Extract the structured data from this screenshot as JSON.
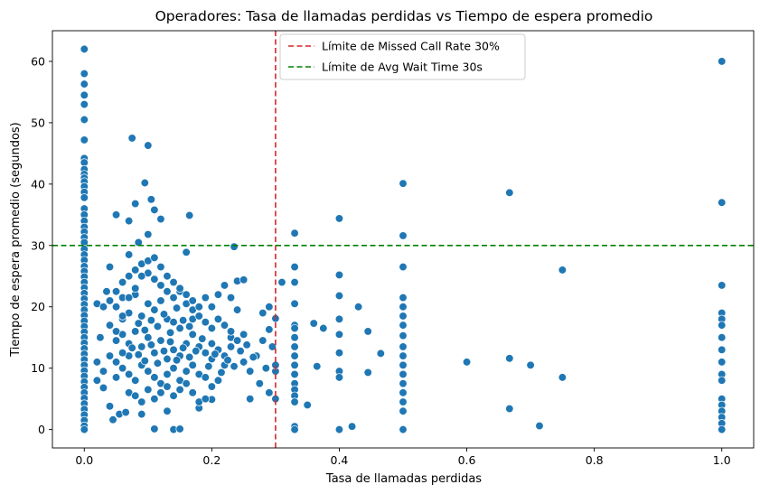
{
  "chart_data": {
    "type": "scatter",
    "title": "Operadores: Tasa de llamadas perdidas vs Tiempo de espera promedio",
    "xlabel": "Tasa de llamadas perdidas",
    "ylabel": "Tiempo de espera promedio (segundos)",
    "xlim": [
      -0.05,
      1.05
    ],
    "ylim": [
      -3,
      65
    ],
    "xticks": [
      0.0,
      0.2,
      0.4,
      0.6,
      0.8,
      1.0
    ],
    "xtick_labels": [
      "0.0",
      "0.2",
      "0.4",
      "0.6",
      "0.8",
      "1.0"
    ],
    "yticks": [
      0,
      10,
      20,
      30,
      40,
      50,
      60
    ],
    "ytick_labels": [
      "0",
      "10",
      "20",
      "30",
      "40",
      "50",
      "60"
    ],
    "grid": false,
    "legend_position": "top-center",
    "point_color": "#1f77b4",
    "reference_lines": [
      {
        "orientation": "vertical",
        "value": 0.3,
        "color": "#d62728",
        "style": "dashed",
        "label": "Límite de Missed Call Rate 30%"
      },
      {
        "orientation": "horizontal",
        "value": 30,
        "color": "#008000",
        "style": "dashed",
        "label": "Límite de Avg Wait Time 30s"
      }
    ],
    "points": [
      [
        0.0,
        62.0
      ],
      [
        0.0,
        58.0
      ],
      [
        0.0,
        56.3
      ],
      [
        0.0,
        54.5
      ],
      [
        0.0,
        53.0
      ],
      [
        0.0,
        50.5
      ],
      [
        0.0,
        47.2
      ],
      [
        0.0,
        44.2
      ],
      [
        0.0,
        43.5
      ],
      [
        0.0,
        42.4
      ],
      [
        0.0,
        41.6
      ],
      [
        0.0,
        41.0
      ],
      [
        0.0,
        40.4
      ],
      [
        0.0,
        39.6
      ],
      [
        0.0,
        38.7
      ],
      [
        0.0,
        37.8
      ],
      [
        0.0,
        36.0
      ],
      [
        0.0,
        35.0
      ],
      [
        0.0,
        34.0
      ],
      [
        0.0,
        33.0
      ],
      [
        0.0,
        32.2
      ],
      [
        0.0,
        31.3
      ],
      [
        0.0,
        30.5
      ],
      [
        0.0,
        29.4
      ],
      [
        0.0,
        28.5
      ],
      [
        0.0,
        27.6
      ],
      [
        0.0,
        26.6
      ],
      [
        0.0,
        25.8
      ],
      [
        0.0,
        24.9
      ],
      [
        0.0,
        24.0
      ],
      [
        0.0,
        23.1
      ],
      [
        0.0,
        22.2
      ],
      [
        0.0,
        21.3
      ],
      [
        0.0,
        20.4
      ],
      [
        0.0,
        19.5
      ],
      [
        0.0,
        18.6
      ],
      [
        0.0,
        17.7
      ],
      [
        0.0,
        16.8
      ],
      [
        0.0,
        15.9
      ],
      [
        0.0,
        15.0
      ],
      [
        0.0,
        14.1
      ],
      [
        0.0,
        13.2
      ],
      [
        0.0,
        12.3
      ],
      [
        0.0,
        11.4
      ],
      [
        0.0,
        10.5
      ],
      [
        0.0,
        9.6
      ],
      [
        0.0,
        8.7
      ],
      [
        0.0,
        7.8
      ],
      [
        0.0,
        6.9
      ],
      [
        0.0,
        6.0
      ],
      [
        0.0,
        5.1
      ],
      [
        0.0,
        4.2
      ],
      [
        0.0,
        3.3
      ],
      [
        0.0,
        2.4
      ],
      [
        0.0,
        1.5
      ],
      [
        0.0,
        0.6
      ],
      [
        0.0,
        0.0
      ],
      [
        0.02,
        20.5
      ],
      [
        0.025,
        15.0
      ],
      [
        0.02,
        11.0
      ],
      [
        0.03,
        6.8
      ],
      [
        0.035,
        22.5
      ],
      [
        0.04,
        26.5
      ],
      [
        0.04,
        3.8
      ],
      [
        0.045,
        1.6
      ],
      [
        0.05,
        35.0
      ],
      [
        0.05,
        8.5
      ],
      [
        0.055,
        2.5
      ],
      [
        0.06,
        18.0
      ],
      [
        0.065,
        2.8
      ],
      [
        0.07,
        34.0
      ],
      [
        0.07,
        28.5
      ],
      [
        0.07,
        12.0
      ],
      [
        0.075,
        47.5
      ],
      [
        0.08,
        36.8
      ],
      [
        0.085,
        30.5
      ],
      [
        0.09,
        2.5
      ],
      [
        0.095,
        40.2
      ],
      [
        0.1,
        46.3
      ],
      [
        0.1,
        31.8
      ],
      [
        0.105,
        37.5
      ],
      [
        0.11,
        35.8
      ],
      [
        0.11,
        0.1
      ],
      [
        0.12,
        34.3
      ],
      [
        0.13,
        3.0
      ],
      [
        0.14,
        0.0
      ],
      [
        0.15,
        0.1
      ],
      [
        0.16,
        28.9
      ],
      [
        0.165,
        34.9
      ],
      [
        0.17,
        18.0
      ],
      [
        0.18,
        3.5
      ],
      [
        0.2,
        4.9
      ],
      [
        0.21,
        8.0
      ],
      [
        0.22,
        10.5
      ],
      [
        0.23,
        15.0
      ],
      [
        0.235,
        29.8
      ],
      [
        0.24,
        24.2
      ],
      [
        0.25,
        24.4
      ],
      [
        0.25,
        11.0
      ],
      [
        0.26,
        5.0
      ],
      [
        0.26,
        9.5
      ],
      [
        0.27,
        12.0
      ],
      [
        0.275,
        7.5
      ],
      [
        0.28,
        14.5
      ],
      [
        0.28,
        19.0
      ],
      [
        0.285,
        10.0
      ],
      [
        0.29,
        16.3
      ],
      [
        0.29,
        6.0
      ],
      [
        0.29,
        20.0
      ],
      [
        0.295,
        13.5
      ],
      [
        0.3,
        18.1
      ],
      [
        0.3,
        9.5
      ],
      [
        0.3,
        5.0
      ],
      [
        0.3,
        10.5
      ],
      [
        0.31,
        24.0
      ],
      [
        0.05,
        20.0
      ],
      [
        0.06,
        21.5
      ],
      [
        0.07,
        19.0
      ],
      [
        0.08,
        22.0
      ],
      [
        0.09,
        18.5
      ],
      [
        0.1,
        20.5
      ],
      [
        0.11,
        19.5
      ],
      [
        0.12,
        21.0
      ],
      [
        0.13,
        18.0
      ],
      [
        0.14,
        17.5
      ],
      [
        0.15,
        16.5
      ],
      [
        0.06,
        15.5
      ],
      [
        0.07,
        14.0
      ],
      [
        0.08,
        16.0
      ],
      [
        0.09,
        13.5
      ],
      [
        0.1,
        15.0
      ],
      [
        0.11,
        12.5
      ],
      [
        0.12,
        14.5
      ],
      [
        0.13,
        11.5
      ],
      [
        0.14,
        13.0
      ],
      [
        0.15,
        12.0
      ],
      [
        0.16,
        14.0
      ],
      [
        0.17,
        15.5
      ],
      [
        0.18,
        13.5
      ],
      [
        0.19,
        12.5
      ],
      [
        0.2,
        14.0
      ],
      [
        0.05,
        11.0
      ],
      [
        0.06,
        10.0
      ],
      [
        0.07,
        9.0
      ],
      [
        0.08,
        8.0
      ],
      [
        0.09,
        10.5
      ],
      [
        0.1,
        9.5
      ],
      [
        0.11,
        8.5
      ],
      [
        0.12,
        7.5
      ],
      [
        0.13,
        9.0
      ],
      [
        0.14,
        10.0
      ],
      [
        0.15,
        8.0
      ],
      [
        0.16,
        9.5
      ],
      [
        0.17,
        10.5
      ],
      [
        0.18,
        9.0
      ],
      [
        0.19,
        8.5
      ],
      [
        0.2,
        11.5
      ],
      [
        0.04,
        17.0
      ],
      [
        0.05,
        16.0
      ],
      [
        0.06,
        24.0
      ],
      [
        0.07,
        25.0
      ],
      [
        0.08,
        26.0
      ],
      [
        0.09,
        27.0
      ],
      [
        0.1,
        25.5
      ],
      [
        0.11,
        24.5
      ],
      [
        0.12,
        23.5
      ],
      [
        0.13,
        22.5
      ],
      [
        0.14,
        21.5
      ],
      [
        0.15,
        22.5
      ],
      [
        0.16,
        20.5
      ],
      [
        0.17,
        19.5
      ],
      [
        0.18,
        18.5
      ],
      [
        0.19,
        17.5
      ],
      [
        0.2,
        16.5
      ],
      [
        0.21,
        18.0
      ],
      [
        0.22,
        17.0
      ],
      [
        0.23,
        16.0
      ],
      [
        0.03,
        20.0
      ],
      [
        0.04,
        21.0
      ],
      [
        0.05,
        22.5
      ],
      [
        0.06,
        12.5
      ],
      [
        0.07,
        6.0
      ],
      [
        0.08,
        5.5
      ],
      [
        0.09,
        4.5
      ],
      [
        0.1,
        6.5
      ],
      [
        0.11,
        5.0
      ],
      [
        0.12,
        6.0
      ],
      [
        0.13,
        7.0
      ],
      [
        0.14,
        5.5
      ],
      [
        0.15,
        6.5
      ],
      [
        0.16,
        7.5
      ],
      [
        0.17,
        6.0
      ],
      [
        0.18,
        4.5
      ],
      [
        0.19,
        5.0
      ],
      [
        0.2,
        7.0
      ],
      [
        0.21,
        13.0
      ],
      [
        0.22,
        12.0
      ],
      [
        0.23,
        13.5
      ],
      [
        0.24,
        14.5
      ],
      [
        0.25,
        15.5
      ],
      [
        0.02,
        8.0
      ],
      [
        0.03,
        9.5
      ],
      [
        0.04,
        12.0
      ],
      [
        0.05,
        14.5
      ],
      [
        0.06,
        18.5
      ],
      [
        0.07,
        21.5
      ],
      [
        0.08,
        23.0
      ],
      [
        0.09,
        25.0
      ],
      [
        0.1,
        27.5
      ],
      [
        0.11,
        28.0
      ],
      [
        0.12,
        26.5
      ],
      [
        0.13,
        25.0
      ],
      [
        0.14,
        24.0
      ],
      [
        0.15,
        23.0
      ],
      [
        0.16,
        22.0
      ],
      [
        0.17,
        21.0
      ],
      [
        0.18,
        20.0
      ],
      [
        0.19,
        21.5
      ],
      [
        0.2,
        20.0
      ],
      [
        0.21,
        22.0
      ],
      [
        0.22,
        23.5
      ],
      [
        0.23,
        21.5
      ],
      [
        0.24,
        19.5
      ],
      [
        0.085,
        17.3
      ],
      [
        0.095,
        16.2
      ],
      [
        0.105,
        17.8
      ],
      [
        0.115,
        16.8
      ],
      [
        0.125,
        18.8
      ],
      [
        0.135,
        15.8
      ],
      [
        0.145,
        19.8
      ],
      [
        0.155,
        17.8
      ],
      [
        0.165,
        16.8
      ],
      [
        0.075,
        13.3
      ],
      [
        0.085,
        12.2
      ],
      [
        0.095,
        11.2
      ],
      [
        0.105,
        13.8
      ],
      [
        0.115,
        10.8
      ],
      [
        0.125,
        12.8
      ],
      [
        0.135,
        14.3
      ],
      [
        0.145,
        11.3
      ],
      [
        0.155,
        13.3
      ],
      [
        0.165,
        11.8
      ],
      [
        0.175,
        12.8
      ],
      [
        0.185,
        14.8
      ],
      [
        0.195,
        10.3
      ],
      [
        0.205,
        12.3
      ],
      [
        0.215,
        9.3
      ],
      [
        0.225,
        11.3
      ],
      [
        0.235,
        10.3
      ],
      [
        0.245,
        12.8
      ],
      [
        0.255,
        13.8
      ],
      [
        0.265,
        11.8
      ],
      [
        0.33,
        32.0
      ],
      [
        0.33,
        26.5
      ],
      [
        0.33,
        24.0
      ],
      [
        0.33,
        20.5
      ],
      [
        0.33,
        17.0
      ],
      [
        0.33,
        16.5
      ],
      [
        0.33,
        15.0
      ],
      [
        0.33,
        13.5
      ],
      [
        0.33,
        12.0
      ],
      [
        0.33,
        10.5
      ],
      [
        0.33,
        9.0
      ],
      [
        0.33,
        7.5
      ],
      [
        0.33,
        6.5
      ],
      [
        0.33,
        5.5
      ],
      [
        0.33,
        4.5
      ],
      [
        0.33,
        0.5
      ],
      [
        0.33,
        0.0
      ],
      [
        0.35,
        4.0
      ],
      [
        0.36,
        17.3
      ],
      [
        0.365,
        10.3
      ],
      [
        0.375,
        16.5
      ],
      [
        0.4,
        34.4
      ],
      [
        0.4,
        25.2
      ],
      [
        0.4,
        21.8
      ],
      [
        0.4,
        18.0
      ],
      [
        0.4,
        15.5
      ],
      [
        0.4,
        12.5
      ],
      [
        0.4,
        9.5
      ],
      [
        0.4,
        8.5
      ],
      [
        0.4,
        0.0
      ],
      [
        0.42,
        0.5
      ],
      [
        0.43,
        20.0
      ],
      [
        0.445,
        16.0
      ],
      [
        0.445,
        9.3
      ],
      [
        0.465,
        12.4
      ],
      [
        0.5,
        40.1
      ],
      [
        0.5,
        31.6
      ],
      [
        0.5,
        26.5
      ],
      [
        0.5,
        21.5
      ],
      [
        0.5,
        20.0
      ],
      [
        0.5,
        18.5
      ],
      [
        0.5,
        17.0
      ],
      [
        0.5,
        15.3
      ],
      [
        0.5,
        13.5
      ],
      [
        0.5,
        12.0
      ],
      [
        0.5,
        10.5
      ],
      [
        0.5,
        9.0
      ],
      [
        0.5,
        7.5
      ],
      [
        0.5,
        6.0
      ],
      [
        0.5,
        4.5
      ],
      [
        0.5,
        3.0
      ],
      [
        0.5,
        0.0
      ],
      [
        0.6,
        11.0
      ],
      [
        0.667,
        38.6
      ],
      [
        0.667,
        11.6
      ],
      [
        0.667,
        3.4
      ],
      [
        0.7,
        10.5
      ],
      [
        0.714,
        0.6
      ],
      [
        0.75,
        26.0
      ],
      [
        0.75,
        8.5
      ],
      [
        1.0,
        60.0
      ],
      [
        1.0,
        37.0
      ],
      [
        1.0,
        23.5
      ],
      [
        1.0,
        19.0
      ],
      [
        1.0,
        18.0
      ],
      [
        1.0,
        17.0
      ],
      [
        1.0,
        15.0
      ],
      [
        1.0,
        13.0
      ],
      [
        1.0,
        11.0
      ],
      [
        1.0,
        9.0
      ],
      [
        1.0,
        8.0
      ],
      [
        1.0,
        5.0
      ],
      [
        1.0,
        4.0
      ],
      [
        1.0,
        3.0
      ],
      [
        1.0,
        2.0
      ],
      [
        1.0,
        1.0
      ],
      [
        1.0,
        0.0
      ]
    ]
  }
}
